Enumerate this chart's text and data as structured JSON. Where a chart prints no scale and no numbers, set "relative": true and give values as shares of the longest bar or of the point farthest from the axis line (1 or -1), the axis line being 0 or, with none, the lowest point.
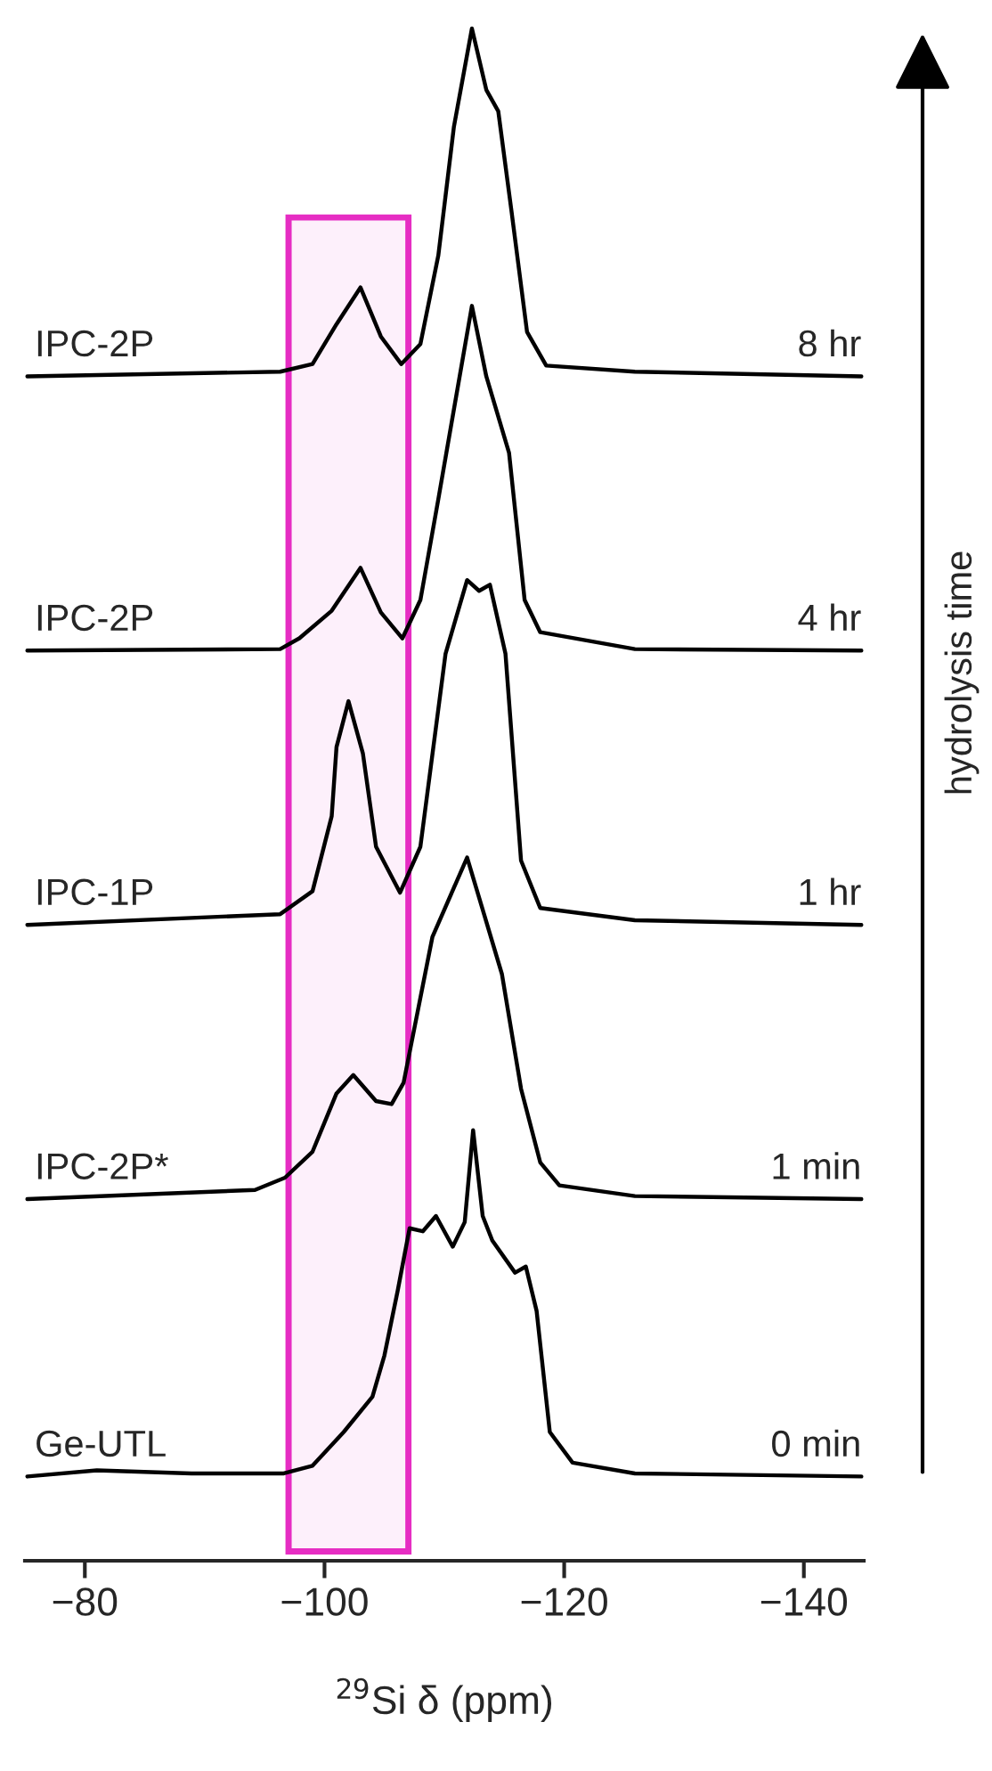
{
  "chart_data": {
    "type": "line",
    "relative": true,
    "xlabel": "$^{29}$Si δ (ppm)",
    "xlim": [
      -75,
      -145
    ],
    "xticks": [
      {
        "value": -80,
        "label": "−80"
      },
      {
        "value": -100,
        "label": "−100"
      },
      {
        "value": -120,
        "label": "−120"
      },
      {
        "value": -140,
        "label": "−140"
      }
    ],
    "series": [
      {
        "name": "Ge-UTL",
        "color": "#000000",
        "x": [
          -75.2,
          -81.0,
          -88.9,
          -96.6,
          -99.0,
          -101.6,
          -104.0,
          -105.0,
          -106.1,
          -107.1,
          -108.2,
          -109.3,
          -110.7,
          -111.7,
          -112.4,
          -113.2,
          -114.0,
          -115.9,
          -116.8,
          -117.7,
          -118.8,
          -120.7,
          -125.9,
          -144.8
        ],
        "values": [
          0.055,
          0.059,
          0.057,
          0.057,
          0.062,
          0.084,
          0.107,
          0.134,
          0.176,
          0.217,
          0.215,
          0.225,
          0.205,
          0.221,
          0.281,
          0.225,
          0.209,
          0.188,
          0.192,
          0.163,
          0.084,
          0.064,
          0.057,
          0.055
        ]
      },
      {
        "name": "IPC-2P*",
        "color": "#000000",
        "x": [
          -75.2,
          -94.2,
          -96.7,
          -99.0,
          -101.0,
          -102.4,
          -104.3,
          -105.6,
          -106.6,
          -109.0,
          -111.9,
          -114.8,
          -116.4,
          -118.0,
          -119.6,
          -125.9,
          -144.8
        ],
        "values": [
          0.236,
          0.242,
          0.25,
          0.267,
          0.305,
          0.317,
          0.3,
          0.298,
          0.312,
          0.407,
          0.459,
          0.383,
          0.308,
          0.26,
          0.245,
          0.238,
          0.236
        ]
      },
      {
        "name": "IPC-1P",
        "color": "#000000",
        "x": [
          -75.2,
          -96.3,
          -99.0,
          -100.6,
          -101.0,
          -102.0,
          -103.2,
          -104.3,
          -106.3,
          -108.0,
          -110.1,
          -111.9,
          -112.9,
          -113.8,
          -115.1,
          -116.4,
          -118.0,
          -125.9,
          -144.8
        ],
        "values": [
          0.415,
          0.422,
          0.437,
          0.486,
          0.531,
          0.561,
          0.527,
          0.466,
          0.436,
          0.466,
          0.592,
          0.64,
          0.633,
          0.637,
          0.592,
          0.457,
          0.426,
          0.418,
          0.415
        ]
      },
      {
        "name": "IPC-2P",
        "color": "#000000",
        "x": [
          -75.2,
          -96.3,
          -97.9,
          -100.6,
          -103.0,
          -104.7,
          -106.5,
          -108.0,
          -109.5,
          -112.3,
          -113.5,
          -115.4,
          -116.7,
          -118.0,
          -125.9,
          -144.8
        ],
        "values": [
          0.594,
          0.595,
          0.602,
          0.62,
          0.648,
          0.619,
          0.602,
          0.627,
          0.693,
          0.819,
          0.773,
          0.723,
          0.627,
          0.606,
          0.595,
          0.594
        ]
      },
      {
        "name": "IPC-2P",
        "color": "#000000",
        "x": [
          -75.2,
          -96.3,
          -99.0,
          -101.0,
          -103.0,
          -104.7,
          -106.4,
          -108.0,
          -109.5,
          -110.8,
          -112.3,
          -113.5,
          -114.5,
          -115.6,
          -116.9,
          -118.5,
          -125.9,
          -144.8
        ],
        "values": [
          0.773,
          0.776,
          0.781,
          0.807,
          0.831,
          0.799,
          0.781,
          0.794,
          0.852,
          0.936,
          1,
          0.96,
          0.946,
          0.881,
          0.802,
          0.78,
          0.776,
          0.773
        ]
      }
    ],
    "bands": [
      {
        "axis": "x",
        "from": -97,
        "to": -107,
        "color": "#e62dc3"
      }
    ],
    "annotations": [
      "0 min",
      "1 min",
      "1 hr",
      "4 hr",
      "8 hr",
      "hydrolysis time"
    ],
    "legend": false,
    "grid": false
  }
}
